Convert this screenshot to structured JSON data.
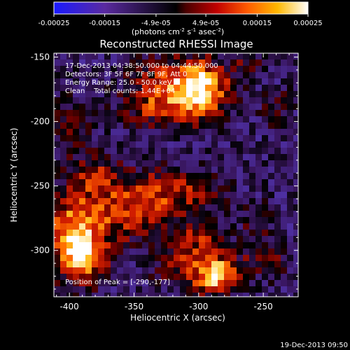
{
  "colorbar": {
    "tick_labels": [
      "-0.00025",
      "-0.00015",
      "-4.9e-05",
      "4.9e-05",
      "0.00015",
      "0.00025"
    ],
    "tick_values": [
      -0.00025,
      -0.00015,
      -4.9e-05,
      4.9e-05,
      0.00015,
      0.00025
    ],
    "range": [
      -0.00025,
      0.00025
    ],
    "units_prefix": "(photons cm",
    "units_exp1": "-2",
    "units_mid": " s",
    "units_exp2": "-1",
    "units_mid2": " asec",
    "units_exp3": "-2",
    "units_suffix": ")",
    "colors": [
      "#1a1aff",
      "#5a2aa0",
      "#000000",
      "#7a0000",
      "#e03000",
      "#ff9a00",
      "#ffff60",
      "#ffffff"
    ]
  },
  "chart_data": {
    "type": "heatmap",
    "title": "Reconstructed RHESSI Image",
    "xlabel": "Heliocentric X (arcsec)",
    "ylabel": "Heliocentric Y (arcsec)",
    "xlim": [
      -412,
      -223
    ],
    "ylim": [
      -336,
      -147
    ],
    "xticks": [
      -400,
      -350,
      -300,
      -250
    ],
    "xtick_labels": [
      "-400",
      "-350",
      "-300",
      "-250"
    ],
    "yticks": [
      -150,
      -200,
      -250,
      -300
    ],
    "ytick_labels": [
      "-150",
      "-200",
      "-250",
      "-300"
    ],
    "annotations": [
      "17-Dec-2013 04:38:50.000 to 04:44:50.000",
      "Detectors: 3F 5F 6F 7F 8F 9F, Att 0",
      "Energy Range: 25.0 - 50.0 keV",
      "Clean    Total counts: 1.44E+04"
    ],
    "peak_label": "Position of Peak = [-290,-177]",
    "peak": [
      -290,
      -177
    ],
    "footer": "19-Dec-2013 09:50"
  }
}
